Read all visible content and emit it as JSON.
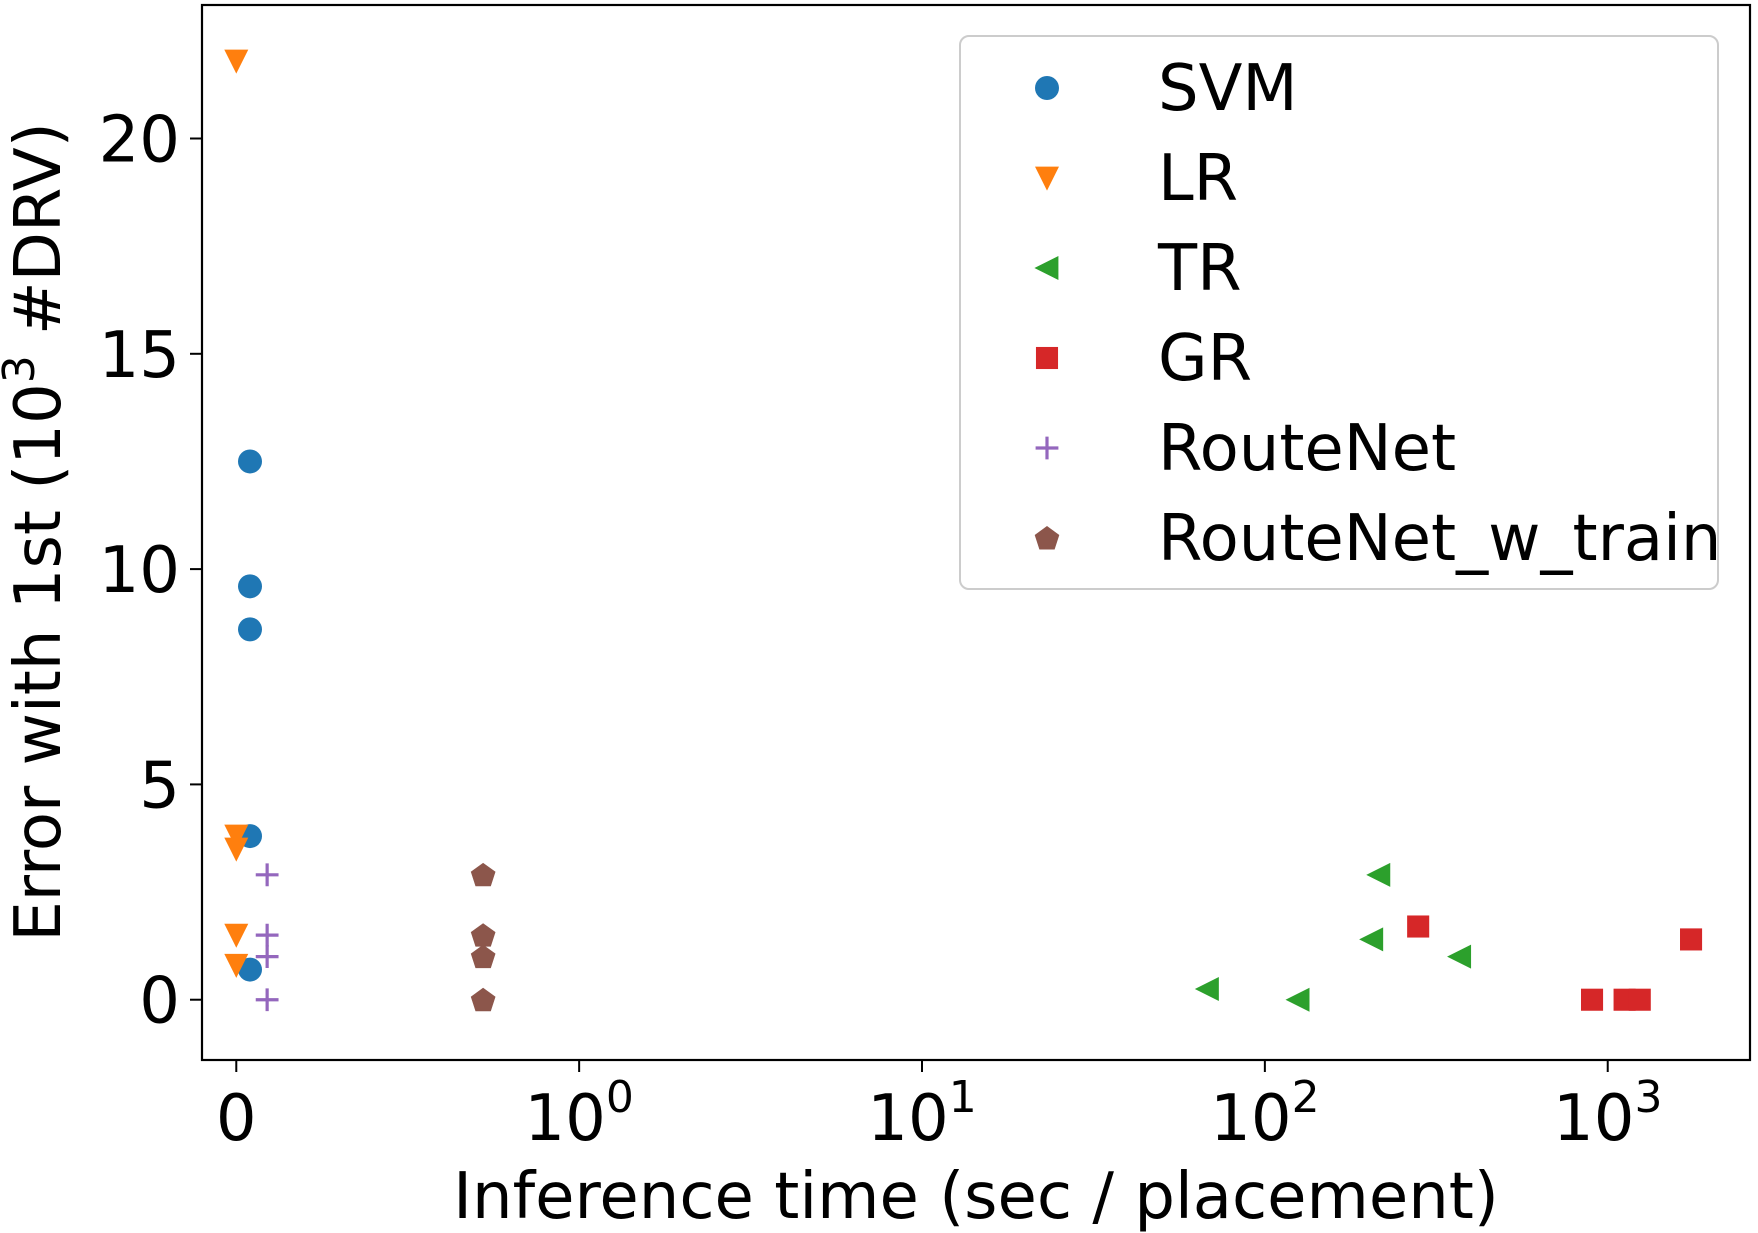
{
  "chart_data": {
    "type": "scatter",
    "xscale": "symlog",
    "xlabel": "Inference time (sec / placement)",
    "ylabel_parts": {
      "prefix": "Error with 1st (10",
      "sup": "3",
      "suffix": " #DRV)"
    },
    "xticks": [
      {
        "value": 0,
        "base": "0",
        "exp": ""
      },
      {
        "value": 1,
        "base": "10",
        "exp": "0"
      },
      {
        "value": 10,
        "base": "10",
        "exp": "1"
      },
      {
        "value": 100,
        "base": "10",
        "exp": "2"
      },
      {
        "value": 1000,
        "base": "10",
        "exp": "3"
      }
    ],
    "yticks": [
      {
        "value": 0,
        "label": "0"
      },
      {
        "value": 5,
        "label": "5"
      },
      {
        "value": 10,
        "label": "10"
      },
      {
        "value": 15,
        "label": "15"
      },
      {
        "value": 20,
        "label": "20"
      }
    ],
    "xlim": [
      -0.1,
      2600
    ],
    "ylim": [
      -1.4,
      23.1
    ],
    "grid": false,
    "legend_position": "top-right",
    "series": [
      {
        "name": "SVM",
        "marker": "circle",
        "color": "#1f77b4",
        "points": [
          [
            0.04,
            12.5
          ],
          [
            0.04,
            9.6
          ],
          [
            0.04,
            8.6
          ],
          [
            0.04,
            3.8
          ],
          [
            0.04,
            0.7
          ]
        ]
      },
      {
        "name": "LR",
        "marker": "triangle-down",
        "color": "#ff7f0e",
        "points": [
          [
            0.0,
            21.8
          ],
          [
            0.0,
            3.8
          ],
          [
            0.0,
            3.5
          ],
          [
            0.0,
            1.5
          ],
          [
            0.0,
            0.8
          ]
        ]
      },
      {
        "name": "TR",
        "marker": "triangle-left",
        "color": "#2ca02c",
        "points": [
          [
            68,
            0.25
          ],
          [
            125,
            0.0
          ],
          [
            215,
            2.9
          ],
          [
            205,
            1.4
          ],
          [
            370,
            1.0
          ]
        ]
      },
      {
        "name": "GR",
        "marker": "square",
        "color": "#d62728",
        "points": [
          [
            280,
            1.7
          ],
          [
            900,
            0.0
          ],
          [
            1120,
            0.0
          ],
          [
            1240,
            0.0
          ],
          [
            1750,
            1.4
          ]
        ]
      },
      {
        "name": "RouteNet",
        "marker": "plus",
        "color": "#9467bd",
        "points": [
          [
            0.09,
            2.9
          ],
          [
            0.09,
            1.5
          ],
          [
            0.09,
            1.0
          ],
          [
            0.09,
            0.0
          ]
        ]
      },
      {
        "name": "RouteNet_w_train",
        "marker": "pentagon",
        "color": "#8c564b",
        "points": [
          [
            0.72,
            2.9
          ],
          [
            0.72,
            1.5
          ],
          [
            0.72,
            1.0
          ],
          [
            0.72,
            0.0
          ]
        ]
      }
    ]
  }
}
